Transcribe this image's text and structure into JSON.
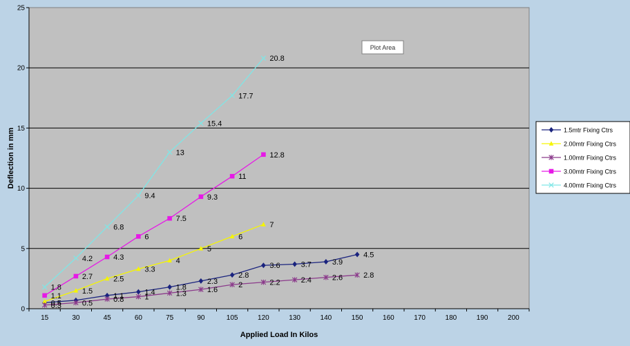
{
  "chart_data": {
    "type": "line",
    "title": "",
    "xlabel": "Applied Load In Kilos",
    "ylabel": "Deflection in mm",
    "x_ticks": [
      15,
      30,
      45,
      60,
      75,
      90,
      105,
      120,
      130,
      140,
      150,
      160,
      170,
      180,
      190,
      200
    ],
    "y_ticks": [
      0,
      5,
      10,
      15,
      20,
      25
    ],
    "ylim": [
      0,
      25
    ],
    "grid": true,
    "legend_placement": "right",
    "annotation": "Plot Area",
    "series": [
      {
        "name": "1.5mtr Fixing Ctrs",
        "color": "#1a237e",
        "marker": "diamond",
        "x": [
          15,
          30,
          45,
          60,
          75,
          90,
          105,
          120,
          130,
          140,
          150
        ],
        "values": [
          0.5,
          0.7,
          1.1,
          1.4,
          1.8,
          2.3,
          2.8,
          3.6,
          3.7,
          3.9,
          4.5
        ],
        "labels": [
          "0.5",
          "",
          "1.1",
          "1.4",
          "1.8",
          "2.3",
          "2.8",
          "3.6",
          "3.7",
          "3.9",
          "4.5"
        ]
      },
      {
        "name": "2.00mtr Fixing Ctrs",
        "color": "#f5f500",
        "marker": "triangle",
        "x": [
          15,
          30,
          45,
          60,
          75,
          90,
          105,
          120
        ],
        "values": [
          0.6,
          1.5,
          2.5,
          3.3,
          4,
          5,
          6,
          7
        ],
        "labels": [
          "",
          "1.5",
          "2.5",
          "3.3",
          "4",
          "5",
          "6",
          "7"
        ]
      },
      {
        "name": "1.00mtr Fixing Ctrs",
        "color": "#8b3a8b",
        "marker": "star",
        "x": [
          15,
          30,
          45,
          60,
          75,
          90,
          105,
          120,
          130,
          140,
          150
        ],
        "values": [
          0.3,
          0.5,
          0.8,
          1,
          1.3,
          1.6,
          2,
          2.2,
          2.4,
          2.6,
          2.8
        ],
        "labels": [
          "0.3",
          "0.5",
          "0.8",
          "1",
          "1.3",
          "1.6",
          "2",
          "2.2",
          "2.4",
          "2.6",
          "2.8"
        ]
      },
      {
        "name": "3.00mtr Fixing Ctrs",
        "color": "#e619e6",
        "marker": "square",
        "x": [
          15,
          30,
          45,
          60,
          75,
          90,
          105,
          120
        ],
        "values": [
          1.1,
          2.7,
          4.3,
          6,
          7.5,
          9.3,
          11,
          12.8
        ],
        "labels": [
          "1.1",
          "2.7",
          "4.3",
          "6",
          "7.5",
          "9.3",
          "11",
          "12.8"
        ]
      },
      {
        "name": "4.00mtr Fixing Ctrs",
        "color": "#7fe6e6",
        "marker": "x",
        "x": [
          15,
          30,
          45,
          60,
          75,
          90,
          105,
          120
        ],
        "values": [
          1.8,
          4.2,
          6.8,
          9.4,
          13,
          15.4,
          17.7,
          20.8
        ],
        "labels": [
          "1.8",
          "4.2",
          "6.8",
          "9.4",
          "13",
          "15.4",
          "17.7",
          "20.8"
        ]
      }
    ]
  }
}
